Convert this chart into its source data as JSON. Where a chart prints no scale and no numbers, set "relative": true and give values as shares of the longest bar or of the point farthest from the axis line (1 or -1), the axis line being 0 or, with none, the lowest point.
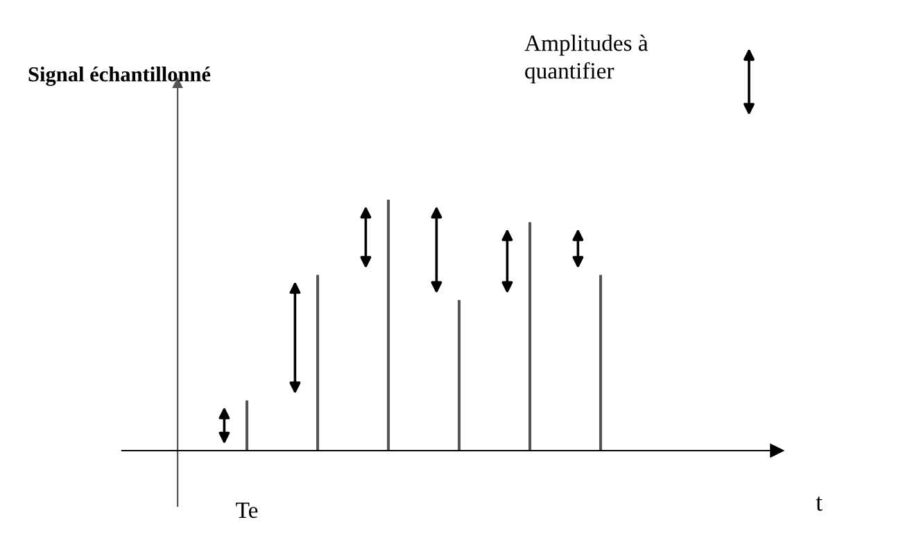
{
  "chart_data": {
    "type": "bar",
    "title": "Signal échantillonné",
    "categories": [
      null,
      null,
      null,
      null,
      null,
      null
    ],
    "values": [
      0.2,
      0.7,
      1.0,
      0.6,
      0.91,
      0.7
    ],
    "color": "#555555",
    "relative": true,
    "annotations": [
      "Te",
      "t",
      "Amplitudes à\nquantifier"
    ]
  }
}
